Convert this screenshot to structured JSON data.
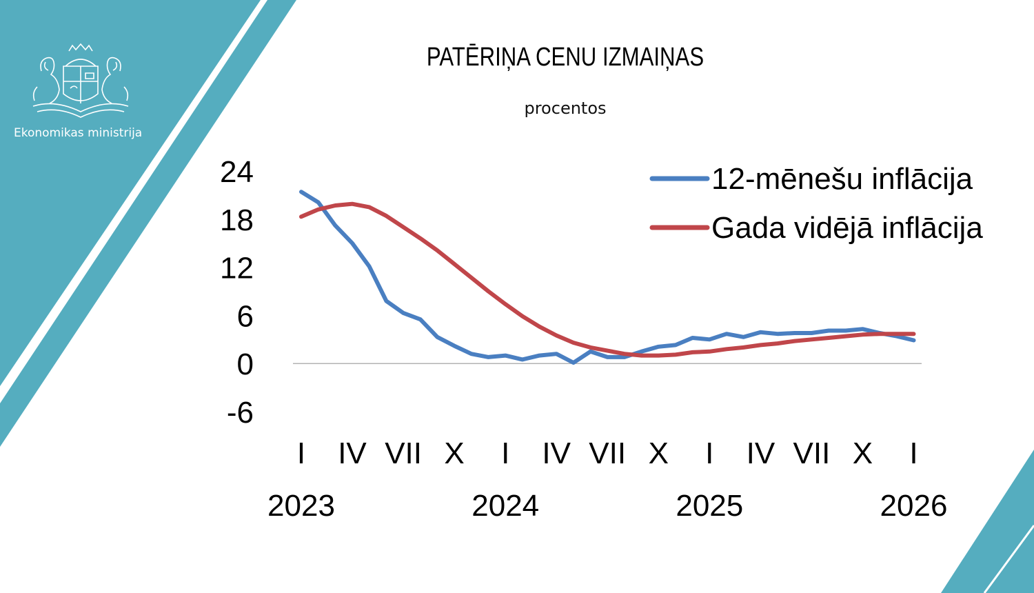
{
  "branding": {
    "ministry_name": "Ekonomikas ministrija",
    "logo_icon": "latvia-coat-of-arms-icon",
    "accent_color": "#55adbf"
  },
  "chart_data": {
    "type": "line",
    "title": "PATĒRIŅA CENU IZMAIŅAS",
    "subtitle": "procentos",
    "xlabel": "",
    "ylabel": "",
    "ylim": [
      -6,
      24
    ],
    "yticks": [
      "24",
      "18",
      "12",
      "6",
      "0",
      "-6"
    ],
    "month_tick_labels": [
      "I",
      "IV",
      "VII",
      "X",
      "I",
      "IV",
      "VII",
      "X",
      "I",
      "IV",
      "VII",
      "X",
      "I"
    ],
    "year_labels": [
      "2023",
      "2024",
      "2025",
      "2026"
    ],
    "legend_position": "top-right",
    "series": [
      {
        "name": "12-mēnešu inflācija",
        "color": "#4a7fc1",
        "values": [
          21.4,
          20.1,
          17.2,
          15.0,
          12.1,
          7.8,
          6.3,
          5.5,
          3.3,
          2.2,
          1.2,
          0.8,
          1.0,
          0.5,
          1.0,
          1.2,
          0.1,
          1.5,
          0.8,
          0.8,
          1.5,
          2.1,
          2.3,
          3.2,
          3.0,
          3.7,
          3.3,
          3.9,
          3.7,
          3.8,
          3.8,
          4.1,
          4.1,
          4.3,
          3.8,
          3.4,
          2.9
        ]
      },
      {
        "name": "Gada vidējā inflācija",
        "color": "#c0464a",
        "values": [
          18.3,
          19.2,
          19.7,
          19.9,
          19.5,
          18.4,
          17.0,
          15.6,
          14.1,
          12.4,
          10.7,
          9.0,
          7.4,
          5.9,
          4.6,
          3.5,
          2.6,
          2.0,
          1.6,
          1.2,
          1.0,
          1.0,
          1.1,
          1.4,
          1.5,
          1.8,
          2.0,
          2.3,
          2.5,
          2.8,
          3.0,
          3.2,
          3.4,
          3.6,
          3.7,
          3.7,
          3.7
        ]
      }
    ]
  }
}
